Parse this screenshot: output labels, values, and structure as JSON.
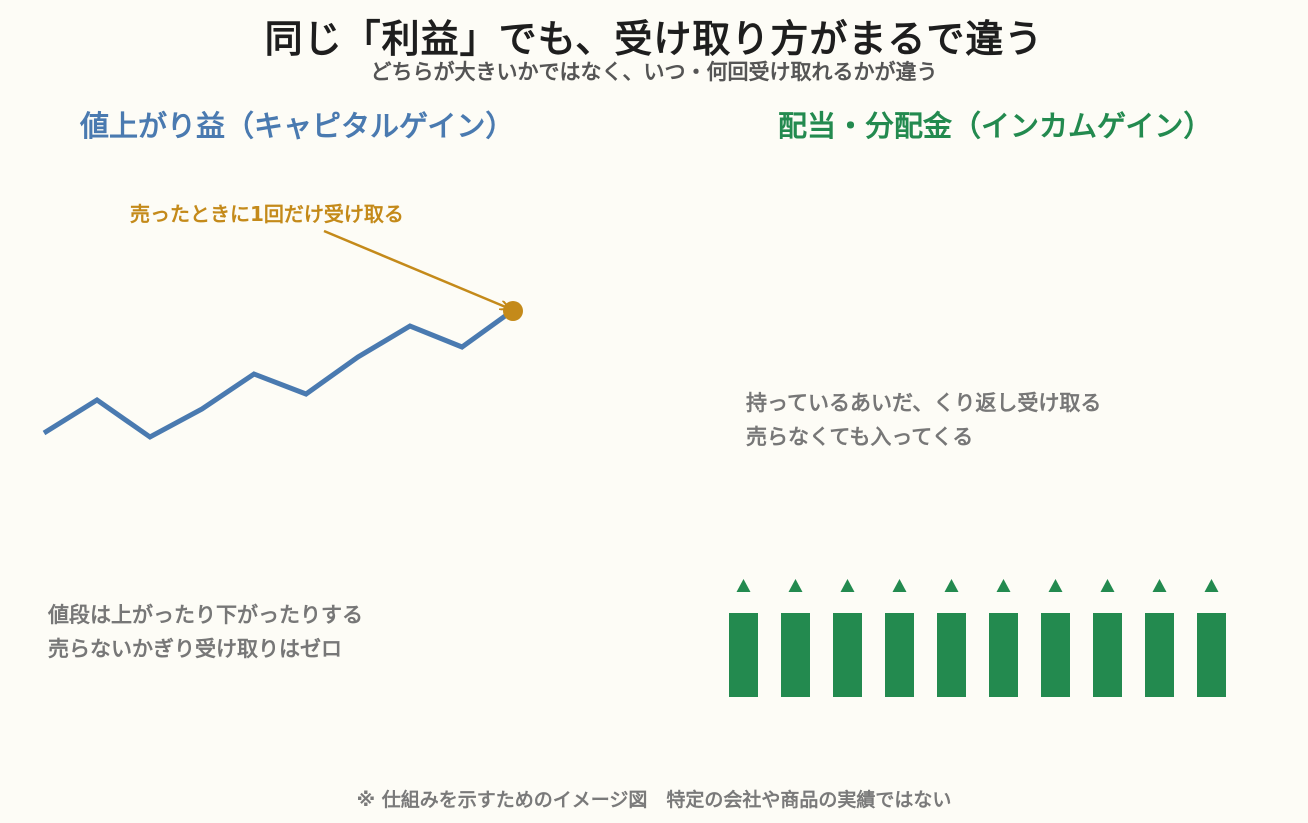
{
  "title": "同じ「利益」でも、受け取り方がまるで違う",
  "subtitle": "どちらが大きいかではなく、いつ・何回受け取れるかが違う",
  "left": {
    "heading": "値上がり益（キャピタルゲイン）",
    "annotation": "売ったときに1回だけ受け取る",
    "note_line1": "値段は上がったり下がったりする",
    "note_line2": "売らないかぎり受け取りはゼロ",
    "line_color": "#4a7ab0",
    "marker_color": "#c48a1a"
  },
  "right": {
    "heading": "配当・分配金（インカムゲイン）",
    "note_line1": "持っているあいだ、くり返し受け取る",
    "note_line2": "売らなくても入ってくる",
    "bar_color": "#238a4f",
    "bar_count": 10
  },
  "footer": "※ 仕組みを示すためのイメージ図　特定の会社や商品の実績ではない"
}
